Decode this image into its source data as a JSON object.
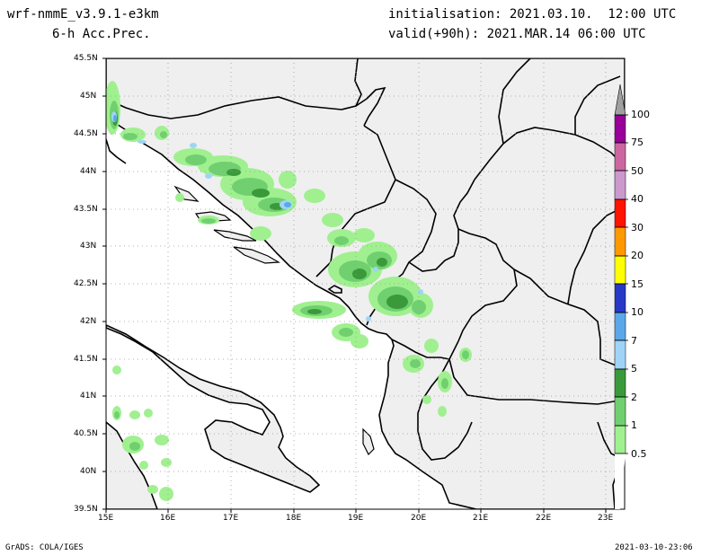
{
  "header": {
    "model": "wrf-nmmE_v3.9.1-e3km",
    "field": "6-h Acc.Prec.",
    "init": "initialisation: 2021.03.10.  12:00 UTC",
    "valid": "valid(+90h): 2021.MAR.14 06:00 UTC"
  },
  "footer": {
    "credit": "GrADS: COLA/IGES",
    "timestamp": "2021-03-10-23:06"
  },
  "lat_ticks": [
    "45.5N",
    "45N",
    "44.5N",
    "44N",
    "43.5N",
    "43N",
    "42.5N",
    "42N",
    "41.5N",
    "41N",
    "40.5N",
    "40N",
    "39.5N"
  ],
  "lon_ticks": [
    "15E",
    "16E",
    "17E",
    "18E",
    "19E",
    "20E",
    "21E",
    "22E",
    "23E"
  ],
  "colorbar": {
    "labels": [
      "0.5",
      "1",
      "2",
      "5",
      "7",
      "10",
      "15",
      "20",
      "30",
      "40",
      "50",
      "75",
      "100"
    ],
    "colors": [
      "#ffffff",
      "#a0f090",
      "#70d070",
      "#3a9a3a",
      "#9fd4f7",
      "#5aa8ea",
      "#2838c6",
      "#ffff00",
      "#ff9900",
      "#ff1400",
      "#cc99cc",
      "#cc66a0",
      "#990099",
      "#a0a0a0"
    ]
  },
  "colors": {
    "land": "#efefef",
    "sea": "#ffffff",
    "precip_light": "#a0f090",
    "precip_mid": "#70d070",
    "precip_heavy": "#3a9a3a",
    "precip_5": "#9fd4f7",
    "precip_7": "#5aa8ea",
    "precip_10": "#2838c6"
  }
}
